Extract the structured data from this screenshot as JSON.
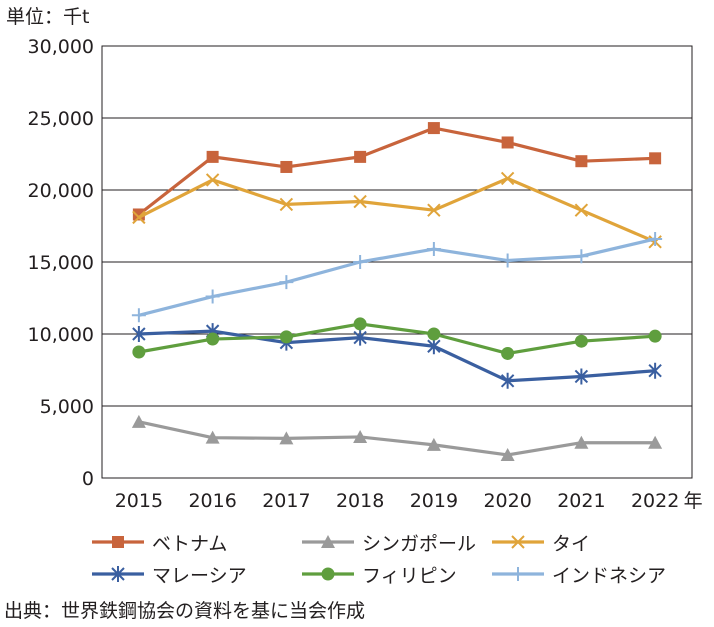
{
  "chart_data": {
    "type": "line",
    "unit_label": "単位：千t",
    "x": [
      "2015",
      "2016",
      "2017",
      "2018",
      "2019",
      "2020",
      "2021",
      "2022"
    ],
    "x_suffix": "年",
    "ylim": [
      0,
      30000
    ],
    "yticks": [
      "0",
      "5,000",
      "10,000",
      "15,000",
      "20,000",
      "25,000",
      "30,000"
    ],
    "grid": true,
    "legend_position": "bottom",
    "series": [
      {
        "name": "ベトナム",
        "color": "#c8643c",
        "marker": "square",
        "values": [
          18300,
          22300,
          21600,
          22300,
          24300,
          23300,
          22000,
          22200
        ]
      },
      {
        "name": "シンガポール",
        "color": "#9a9a9a",
        "marker": "triangle",
        "values": [
          3900,
          2800,
          2750,
          2850,
          2300,
          1600,
          2450,
          2450
        ]
      },
      {
        "name": "タイ",
        "color": "#e0a43a",
        "marker": "x",
        "values": [
          18100,
          20700,
          19000,
          19200,
          18600,
          20800,
          18600,
          16400
        ]
      },
      {
        "name": "マレーシア",
        "color": "#3a5fa0",
        "marker": "star",
        "values": [
          10000,
          10200,
          9400,
          9750,
          9150,
          6750,
          7050,
          7450
        ]
      },
      {
        "name": "フィリピン",
        "color": "#5f9e3e",
        "marker": "circle",
        "values": [
          8750,
          9650,
          9800,
          10700,
          10000,
          8650,
          9500,
          9850
        ]
      },
      {
        "name": "インドネシア",
        "color": "#8eb4dc",
        "marker": "plus",
        "values": [
          11300,
          12600,
          13600,
          15000,
          15900,
          15100,
          15400,
          16600
        ]
      }
    ]
  },
  "source": "出典：世界鉄鋼協会の資料を基に当会作成"
}
